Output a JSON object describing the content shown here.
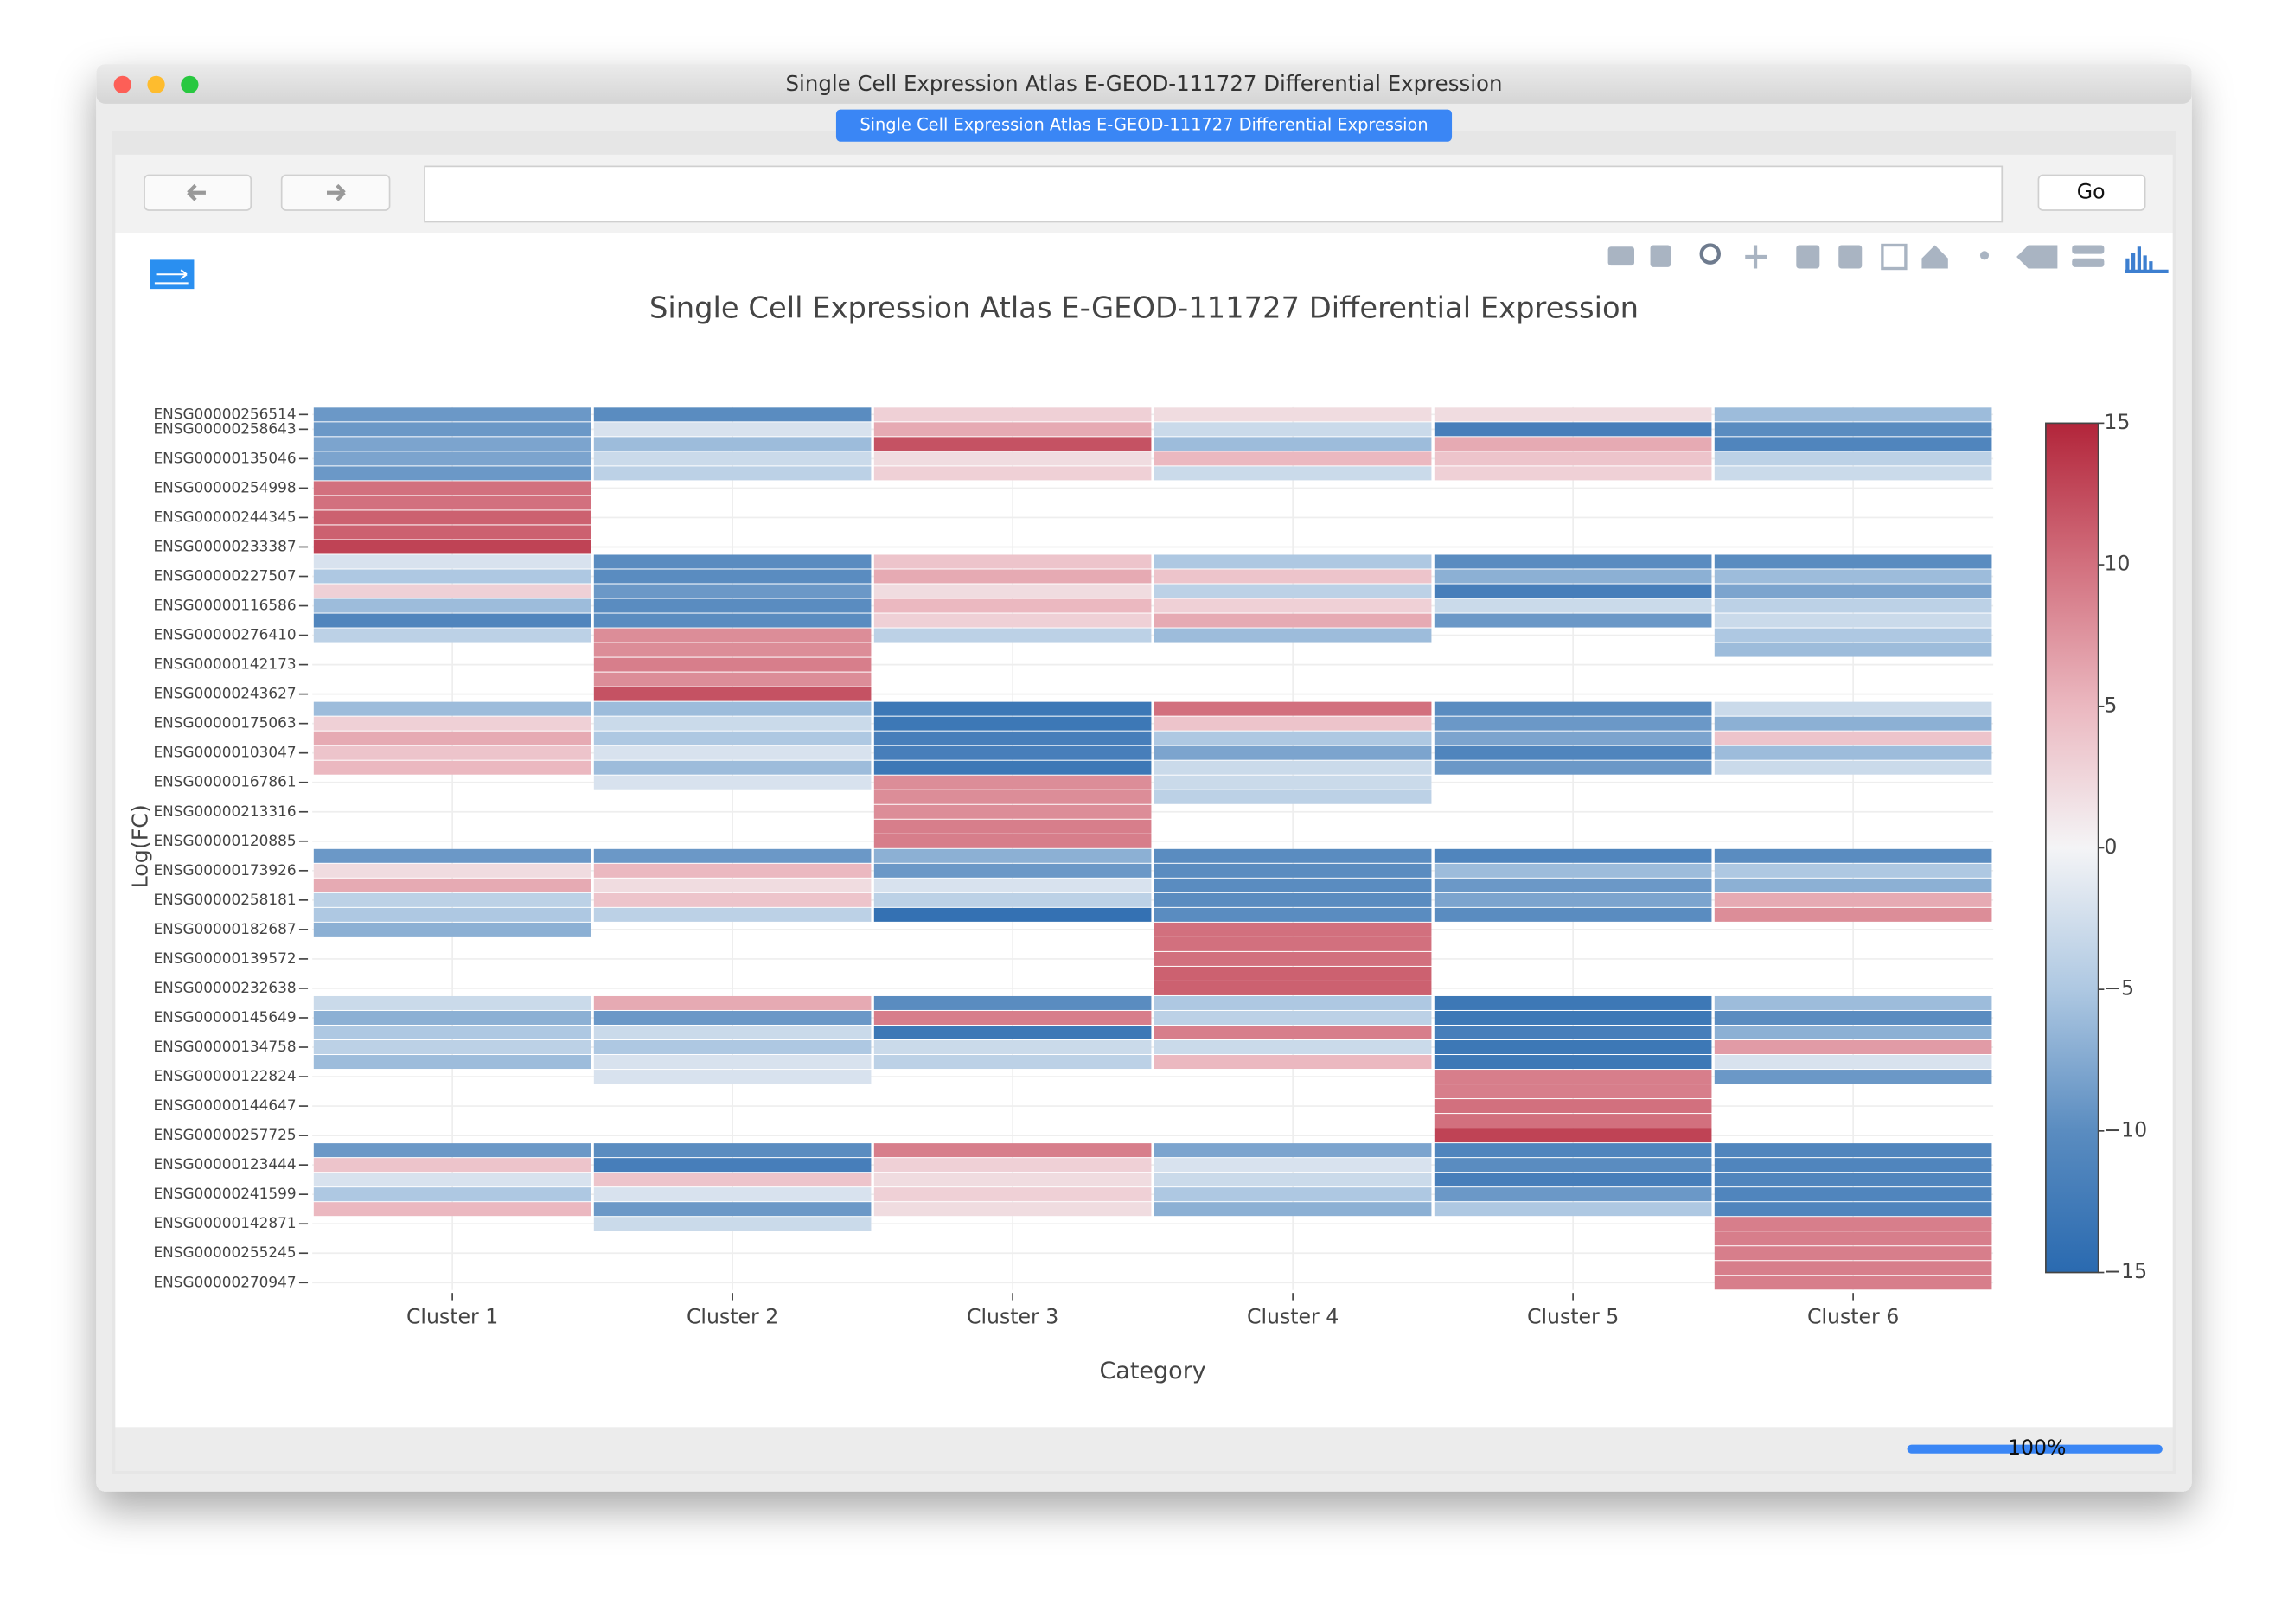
{
  "window": {
    "title": "Single Cell Expression Atlas E-GEOD-111727 Differential Expression",
    "tab": "Single Cell Expression Atlas E-GEOD-111727 Differential Expression",
    "go_button": "Go",
    "progress": "100%"
  },
  "chart_data": {
    "type": "heatmap",
    "title": "Single Cell Expression Atlas E-GEOD-111727 Differential Expression",
    "x_label": "Category",
    "y_label": "Log(FC)",
    "categories": [
      "ENSG00000256514",
      "ENSG00000258643",
      null,
      "ENSG00000135046",
      null,
      "ENSG00000254998",
      null,
      "ENSG00000244345",
      null,
      "ENSG00000233387",
      null,
      "ENSG00000227507",
      null,
      "ENSG00000116586",
      null,
      "ENSG00000276410",
      null,
      "ENSG00000142173",
      null,
      "ENSG00000243627",
      null,
      "ENSG00000175063",
      null,
      "ENSG00000103047",
      null,
      "ENSG00000167861",
      null,
      "ENSG00000213316",
      null,
      "ENSG00000120885",
      null,
      "ENSG00000173926",
      null,
      "ENSG00000258181",
      null,
      "ENSG00000182687",
      null,
      "ENSG00000139572",
      null,
      "ENSG00000232638",
      null,
      "ENSG00000145649",
      null,
      "ENSG00000134758",
      null,
      "ENSG00000122824",
      null,
      "ENSG00000144647",
      null,
      "ENSG00000257725",
      null,
      "ENSG00000123444",
      null,
      "ENSG00000241599",
      null,
      "ENSG00000142871",
      null,
      "ENSG00000255245",
      null,
      "ENSG00000270947"
    ],
    "series": [
      {
        "name": "Cluster 1",
        "values": [
          -9,
          -9,
          -8,
          -8,
          -9,
          10,
          10,
          11,
          11,
          13,
          -2,
          -5,
          3,
          -6,
          -11,
          -4,
          null,
          null,
          null,
          null,
          -6,
          3,
          6,
          4,
          5,
          null,
          null,
          null,
          null,
          null,
          -9,
          2,
          6,
          -4,
          -5,
          -7,
          null,
          null,
          null,
          null,
          -3,
          -7,
          -5,
          -4,
          -6,
          null,
          null,
          null,
          null,
          null,
          -9,
          4,
          -2,
          -5,
          5,
          null,
          null,
          null,
          null,
          null
        ]
      },
      {
        "name": "Cluster 2",
        "values": [
          -10,
          -2,
          -6,
          -3,
          -4,
          null,
          null,
          null,
          null,
          null,
          -10,
          -10,
          -9,
          -10,
          -10,
          8,
          8,
          9,
          8,
          12,
          -6,
          -3,
          -5,
          -2,
          -6,
          -2,
          null,
          null,
          null,
          null,
          -9,
          5,
          2,
          4,
          -4,
          null,
          null,
          null,
          null,
          null,
          6,
          -9,
          -3,
          -5,
          -2,
          -2,
          null,
          null,
          null,
          null,
          -10,
          -12,
          4,
          -2,
          -9,
          -3,
          null,
          null,
          null,
          null
        ]
      },
      {
        "name": "Cluster 3",
        "values": [
          3,
          6,
          12,
          2,
          3,
          null,
          null,
          null,
          null,
          null,
          4,
          6,
          2,
          5,
          3,
          -4,
          null,
          null,
          null,
          null,
          -13,
          -13,
          -12,
          -12,
          -13,
          8,
          8,
          8,
          9,
          9,
          -7,
          -9,
          -2,
          -4,
          -14,
          null,
          null,
          null,
          null,
          null,
          -10,
          9,
          -13,
          -3,
          -4,
          null,
          null,
          null,
          null,
          null,
          9,
          3,
          2,
          3,
          2,
          null,
          null,
          null,
          null,
          null
        ]
      },
      {
        "name": "Cluster 4",
        "values": [
          2,
          -3,
          -6,
          5,
          -3,
          null,
          null,
          null,
          null,
          null,
          -5,
          4,
          -4,
          3,
          6,
          -6,
          null,
          null,
          null,
          null,
          10,
          4,
          -5,
          -8,
          -3,
          -3,
          -4,
          null,
          null,
          null,
          -10,
          -10,
          -10,
          -10,
          -10,
          10,
          10,
          10,
          11,
          11,
          -5,
          -4,
          9,
          -3,
          5,
          null,
          null,
          null,
          null,
          null,
          -8,
          -2,
          -3,
          -5,
          -7,
          null,
          null,
          null,
          null,
          null
        ]
      },
      {
        "name": "Cluster 5",
        "values": [
          2,
          -12,
          6,
          4,
          3,
          null,
          null,
          null,
          null,
          null,
          -10,
          -7,
          -12,
          -3,
          -9,
          null,
          null,
          null,
          null,
          null,
          -10,
          -9,
          -8,
          -11,
          -9,
          null,
          null,
          null,
          null,
          null,
          -11,
          -6,
          -9,
          -8,
          -10,
          null,
          null,
          null,
          null,
          null,
          -13,
          -13,
          -12,
          -13,
          -13,
          9,
          9,
          10,
          10,
          13,
          -11,
          -10,
          -12,
          -9,
          -5,
          null,
          null,
          null,
          null,
          null
        ]
      },
      {
        "name": "Cluster 6",
        "values": [
          -6,
          -10,
          -11,
          -4,
          -3,
          null,
          null,
          null,
          null,
          null,
          -10,
          -6,
          -8,
          -4,
          -3,
          -5,
          -6,
          null,
          null,
          null,
          -3,
          -7,
          4,
          -6,
          -3,
          null,
          null,
          null,
          null,
          null,
          -10,
          -5,
          -7,
          6,
          8,
          null,
          null,
          null,
          null,
          null,
          -6,
          -10,
          -7,
          7,
          -2,
          -9,
          null,
          null,
          null,
          null,
          -11,
          -11,
          -11,
          -11,
          -11,
          9,
          9,
          9,
          9,
          9
        ]
      }
    ],
    "zlim": [
      -15,
      15
    ],
    "zticks": [
      {
        "value": -15,
        "label": "−15"
      },
      {
        "value": -10,
        "label": "−10"
      },
      {
        "value": -5,
        "label": "−5"
      },
      0,
      5,
      10,
      15
    ],
    "colorscale": [
      "#2a6ab0",
      "#5a8cc0",
      "#aec8e2",
      "#f4f4f6",
      "#ebb8c0",
      "#d2707e",
      "#b2253a"
    ],
    "grid": true
  }
}
